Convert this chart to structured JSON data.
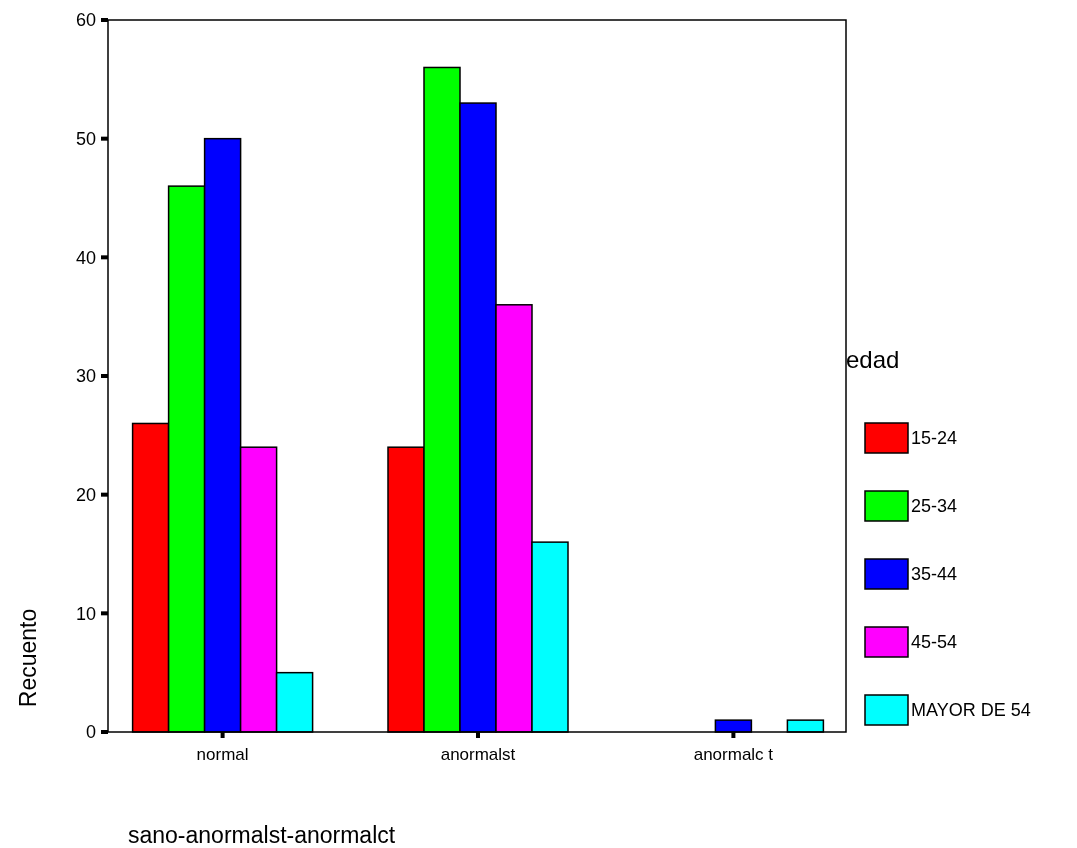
{
  "chart_data": {
    "type": "bar",
    "xlabel": "sano-anormalst-anormalct",
    "ylabel": "Recuento",
    "legend_title": "edad",
    "legend": "right",
    "categories": [
      "normal",
      "anormalst",
      "anormalc t"
    ],
    "ylim": [
      0,
      60
    ],
    "yticks": [
      0,
      10,
      20,
      30,
      40,
      50,
      60
    ],
    "grid": false,
    "series": [
      {
        "name": "15-24",
        "color": "#ff0000",
        "values": [
          26,
          24,
          0
        ]
      },
      {
        "name": "25-34",
        "color": "#00ff00",
        "values": [
          46,
          56,
          0
        ]
      },
      {
        "name": "35-44",
        "color": "#0000ff",
        "values": [
          50,
          53,
          1
        ]
      },
      {
        "name": "45-54",
        "color": "#ff00ff",
        "values": [
          24,
          36,
          0
        ]
      },
      {
        "name": "MAYOR DE 54",
        "color": "#00ffff",
        "values": [
          5,
          16,
          1
        ]
      }
    ]
  }
}
